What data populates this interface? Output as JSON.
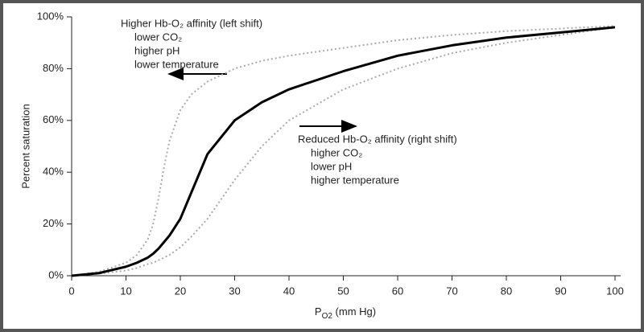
{
  "chart_data": {
    "type": "line",
    "xlabel": {
      "base": "P",
      "sub": "O2",
      "rest": " (mm Hg)"
    },
    "ylabel": "Percent saturation",
    "x": [
      0,
      5,
      10,
      12,
      14,
      15,
      16,
      17,
      18,
      20,
      22,
      25,
      30,
      35,
      40,
      50,
      60,
      70,
      80,
      90,
      100
    ],
    "series": [
      {
        "color": "#aaaaaa",
        "style": "dotted",
        "values": [
          0,
          1.5,
          5,
          8,
          14,
          20,
          30,
          42,
          52,
          64,
          70,
          75,
          80,
          83,
          85,
          88,
          91,
          93,
          94.5,
          95.5,
          96.5
        ]
      },
      {
        "color": "#aaaaaa",
        "style": "dotted",
        "values": [
          0,
          0.8,
          2,
          3,
          4.5,
          5,
          6,
          7,
          8,
          11,
          15,
          22,
          37,
          50,
          60,
          72,
          80,
          86,
          90,
          93,
          96
        ]
      },
      {
        "color": "#000000",
        "style": "solid",
        "values": [
          0,
          1,
          3.5,
          5,
          7,
          8.5,
          10.5,
          13,
          15.5,
          22,
          32,
          47,
          60,
          67,
          72,
          79,
          85,
          89,
          92,
          94,
          96
        ]
      }
    ],
    "xlim": [
      0,
      101
    ],
    "ylim": [
      0,
      100
    ],
    "xticks": [
      0,
      10,
      20,
      30,
      40,
      50,
      60,
      70,
      80,
      90,
      100
    ],
    "yticks": [
      {
        "value": 0,
        "label": "0%"
      },
      {
        "value": 20,
        "label": "20%"
      },
      {
        "value": 40,
        "label": "40%"
      },
      {
        "value": 60,
        "label": "60%"
      },
      {
        "value": 80,
        "label": "80%"
      },
      {
        "value": 100,
        "label": "100%"
      }
    ],
    "annotations": [
      {
        "title": "Higher Hb-O₂ affinity (left shift)",
        "lines": [
          "lower CO₂",
          "higher pH",
          "lower temperature"
        ]
      },
      {
        "title": "Reduced Hb-O₂ affinity (right shift)",
        "lines": [
          "higher CO₂",
          "lower pH",
          "higher temperature"
        ]
      }
    ]
  }
}
